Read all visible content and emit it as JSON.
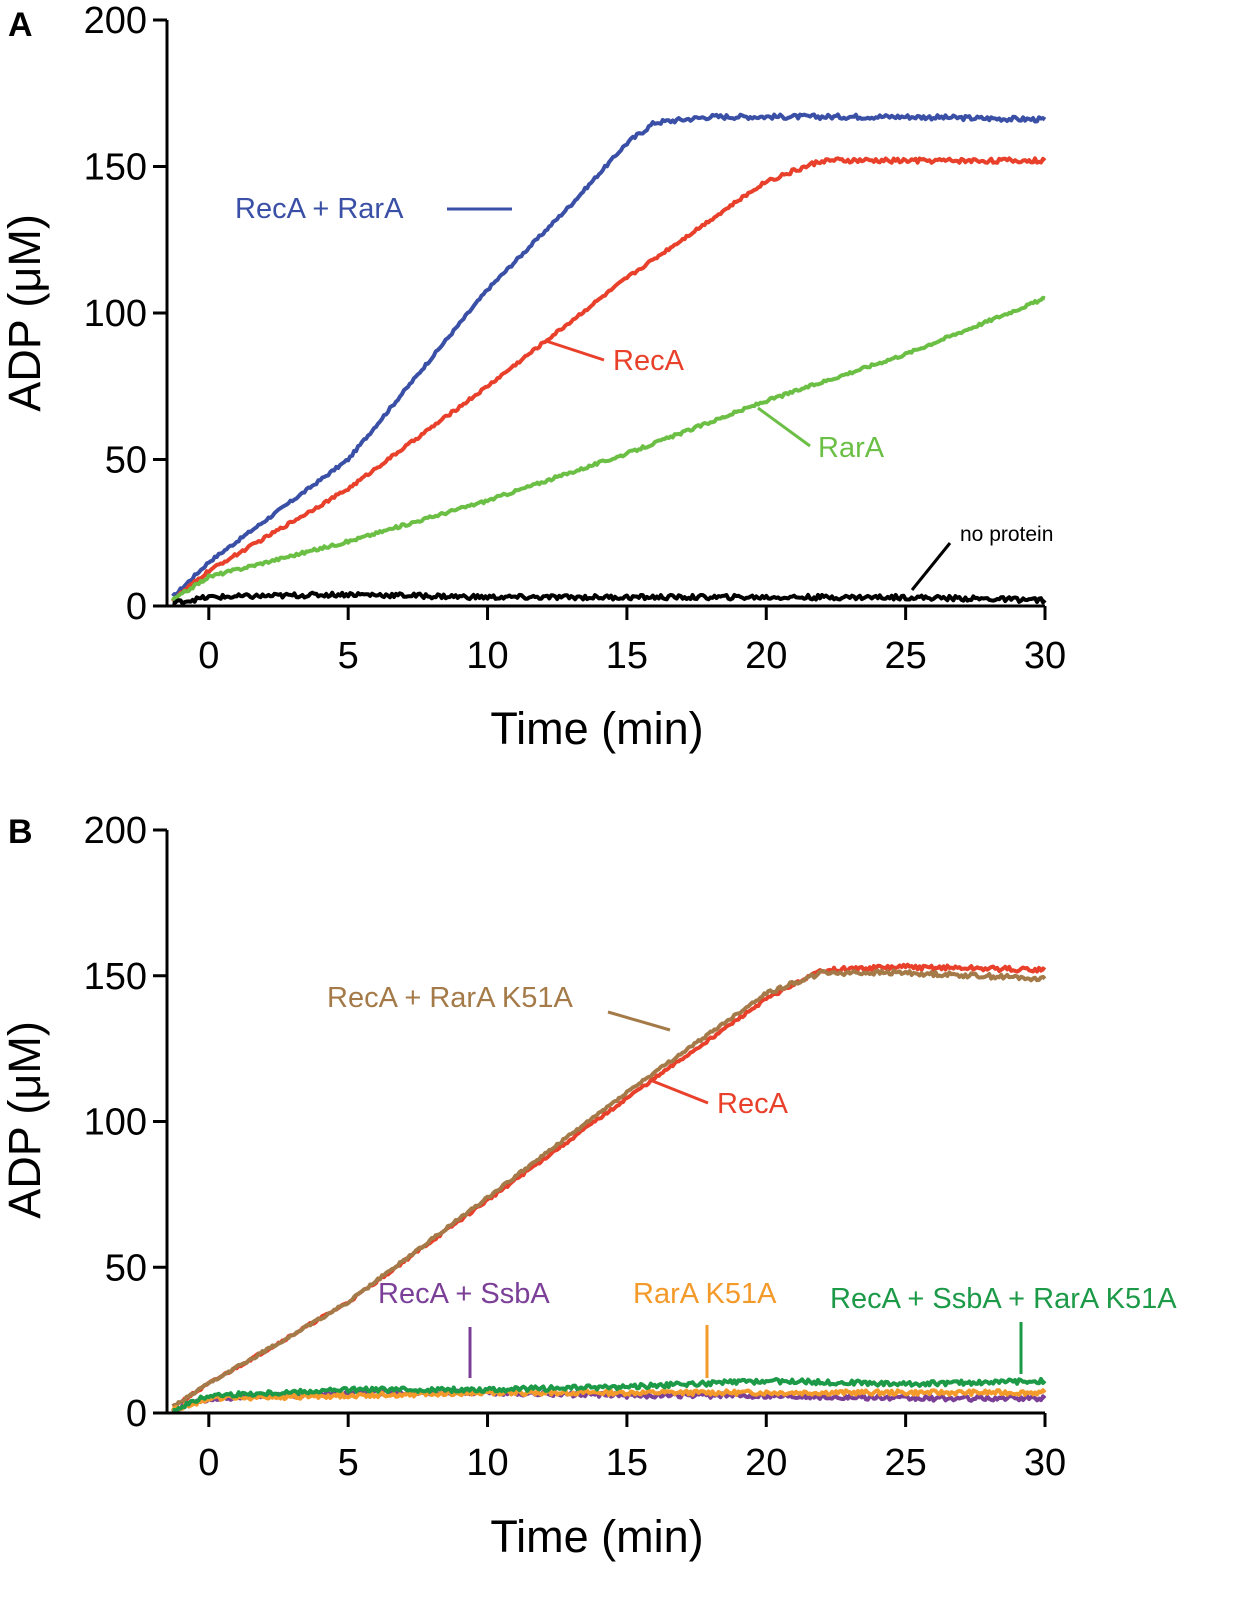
{
  "chart_data": [
    {
      "panel": "A",
      "type": "line",
      "xlabel": "Time (min)",
      "ylabel": "ADP (μM)",
      "xlim": [
        -1.5,
        30
      ],
      "ylim": [
        0,
        200
      ],
      "xticks": [
        0,
        5,
        10,
        15,
        20,
        25,
        30
      ],
      "yticks": [
        0,
        50,
        100,
        150,
        200
      ],
      "series": [
        {
          "name": "RecA + RarA",
          "color": "#3a4fa6",
          "label": "RecA + RarA",
          "points": [
            [
              -1.3,
              3
            ],
            [
              0,
              15
            ],
            [
              5,
              50
            ],
            [
              10,
              108
            ],
            [
              13,
              137
            ],
            [
              15,
              158
            ],
            [
              16,
              165
            ],
            [
              18,
              167
            ],
            [
              22,
              167
            ],
            [
              25,
              167
            ],
            [
              30,
              166
            ]
          ]
        },
        {
          "name": "RecA",
          "color": "#e8402a",
          "label": "RecA",
          "points": [
            [
              -1.3,
              2
            ],
            [
              0,
              12
            ],
            [
              5,
              40
            ],
            [
              10,
              75
            ],
            [
              15,
              112
            ],
            [
              20,
              145
            ],
            [
              22,
              152
            ],
            [
              25,
              152
            ],
            [
              30,
              152
            ]
          ]
        },
        {
          "name": "RarA",
          "color": "#6cbf45",
          "label": "RarA",
          "points": [
            [
              -1.3,
              2
            ],
            [
              0,
              10
            ],
            [
              5,
              22
            ],
            [
              10,
              36
            ],
            [
              15,
              52
            ],
            [
              20,
              70
            ],
            [
              25,
              86
            ],
            [
              30,
              105
            ]
          ]
        },
        {
          "name": "no protein",
          "color": "#000000",
          "label": "no protein",
          "points": [
            [
              -1.3,
              1
            ],
            [
              0,
              3
            ],
            [
              5,
              4
            ],
            [
              10,
              3
            ],
            [
              15,
              3
            ],
            [
              20,
              3
            ],
            [
              25,
              3
            ],
            [
              30,
              2
            ]
          ]
        }
      ]
    },
    {
      "panel": "B",
      "type": "line",
      "xlabel": "Time (min)",
      "ylabel": "ADP (μM)",
      "xlim": [
        -1.5,
        30
      ],
      "ylim": [
        0,
        200
      ],
      "xticks": [
        0,
        5,
        10,
        15,
        20,
        25,
        30
      ],
      "yticks": [
        0,
        50,
        100,
        150,
        200
      ],
      "series": [
        {
          "name": "RecA",
          "color": "#e8402a",
          "label": "RecA",
          "points": [
            [
              -1.3,
              2
            ],
            [
              0,
              10
            ],
            [
              5,
              38
            ],
            [
              10,
              73
            ],
            [
              15,
              108
            ],
            [
              20,
              142
            ],
            [
              22,
              152
            ],
            [
              25,
              153
            ],
            [
              30,
              152
            ]
          ]
        },
        {
          "name": "RecA + RarA K51A",
          "color": "#a47a48",
          "label": "RecA + RarA K51A",
          "points": [
            [
              -1.3,
              2
            ],
            [
              0,
              10
            ],
            [
              5,
              38
            ],
            [
              10,
              74
            ],
            [
              15,
              110
            ],
            [
              20,
              144
            ],
            [
              22,
              151
            ],
            [
              25,
              151
            ],
            [
              30,
              149
            ]
          ]
        },
        {
          "name": "RecA + SsbA",
          "color": "#7b3f98",
          "label": "RecA + SsbA",
          "points": [
            [
              -1.3,
              1
            ],
            [
              0,
              5
            ],
            [
              5,
              7
            ],
            [
              10,
              7
            ],
            [
              15,
              6
            ],
            [
              20,
              6
            ],
            [
              25,
              5
            ],
            [
              30,
              5
            ]
          ]
        },
        {
          "name": "RarA K51A",
          "color": "#f39a2b",
          "label": "RarA K51A",
          "points": [
            [
              -1.3,
              1
            ],
            [
              0,
              5
            ],
            [
              5,
              6
            ],
            [
              10,
              7
            ],
            [
              15,
              7
            ],
            [
              20,
              7
            ],
            [
              25,
              7
            ],
            [
              30,
              7
            ]
          ]
        },
        {
          "name": "RecA + SsbA + RarA K51A",
          "color": "#1d9a48",
          "label": "RecA + SsbA + RarA K51A",
          "points": [
            [
              -1.3,
              1
            ],
            [
              0,
              6
            ],
            [
              5,
              8
            ],
            [
              10,
              8
            ],
            [
              15,
              9
            ],
            [
              20,
              11
            ],
            [
              25,
              10
            ],
            [
              30,
              11
            ]
          ]
        }
      ]
    }
  ]
}
